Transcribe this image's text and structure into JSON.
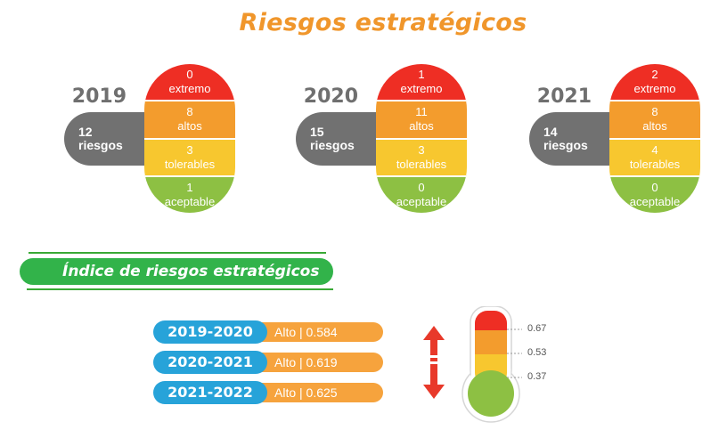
{
  "title": "Riesgos estratégicos",
  "years": [
    {
      "year": "2019",
      "count_number": "12",
      "count_word": "riesgos",
      "segments": [
        {
          "value": "0",
          "label": "extremo"
        },
        {
          "value": "8",
          "label": "altos"
        },
        {
          "value": "3",
          "label": "tolerables"
        },
        {
          "value": "1",
          "label": "aceptable"
        }
      ]
    },
    {
      "year": "2020",
      "count_number": "15",
      "count_word": "riesgos",
      "segments": [
        {
          "value": "1",
          "label": "extremo"
        },
        {
          "value": "11",
          "label": "altos"
        },
        {
          "value": "3",
          "label": "tolerables"
        },
        {
          "value": "0",
          "label": "aceptable"
        }
      ]
    },
    {
      "year": "2021",
      "count_number": "14",
      "count_word": "riesgos",
      "segments": [
        {
          "value": "2",
          "label": "extremo"
        },
        {
          "value": "8",
          "label": "altos"
        },
        {
          "value": "4",
          "label": "tolerables"
        },
        {
          "value": "0",
          "label": "aceptable"
        }
      ]
    }
  ],
  "index": {
    "title": "Índice de riesgos estratégicos",
    "periods": [
      {
        "period": "2019-2020",
        "value": "Alto | 0.584"
      },
      {
        "period": "2020-2021",
        "value": "Alto | 0.619"
      },
      {
        "period": "2021-2022",
        "value": "Alto | 0.625"
      }
    ]
  },
  "thermometer": {
    "thresholds": [
      "0.67",
      "0.53",
      "0.37"
    ]
  },
  "colors": {
    "title": "#f0962b",
    "extremo": "#ee2e24",
    "altos": "#f39c2d",
    "tolerables": "#f7c72f",
    "aceptable": "#8dc043",
    "count_pill": "#717171",
    "index_green": "#32b34a",
    "period_blue": "#27a3d9",
    "period_orange": "#f6a33d",
    "arrow": "#e8392a"
  }
}
